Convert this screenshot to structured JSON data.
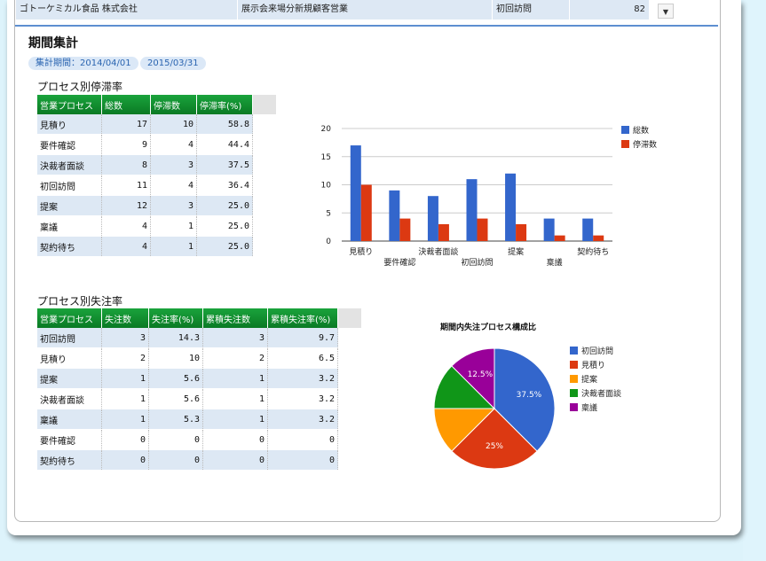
{
  "top_row": {
    "company": "ゴトーケミカル食品 株式会社",
    "department": "展示会来場分新規顧客営業",
    "process": "初回訪問",
    "value": "82"
  },
  "section": {
    "title": "期間集計",
    "period_label": "集計期間：2014/04/01",
    "period_end": "2015/03/31"
  },
  "stagnation": {
    "title": "プロセス別停滞率",
    "headers": [
      "営業プロセス",
      "総数",
      "停滞数",
      "停滞率(%)"
    ],
    "rows": [
      [
        "見積り",
        "17",
        "10",
        "58.8"
      ],
      [
        "要件確認",
        "9",
        "4",
        "44.4"
      ],
      [
        "決裁者面談",
        "8",
        "3",
        "37.5"
      ],
      [
        "初回訪問",
        "11",
        "4",
        "36.4"
      ],
      [
        "提案",
        "12",
        "3",
        "25.0"
      ],
      [
        "稟議",
        "4",
        "1",
        "25.0"
      ],
      [
        "契約待ち",
        "4",
        "1",
        "25.0"
      ]
    ]
  },
  "lost": {
    "title": "プロセス別失注率",
    "headers": [
      "営業プロセス",
      "失注数",
      "失注率(%)",
      "累積失注数",
      "累積失注率(%)"
    ],
    "rows": [
      [
        "初回訪問",
        "3",
        "14.3",
        "3",
        "9.7"
      ],
      [
        "見積り",
        "2",
        "10",
        "2",
        "6.5"
      ],
      [
        "提案",
        "1",
        "5.6",
        "1",
        "3.2"
      ],
      [
        "決裁者面談",
        "1",
        "5.6",
        "1",
        "3.2"
      ],
      [
        "稟議",
        "1",
        "5.3",
        "1",
        "3.2"
      ],
      [
        "要件確認",
        "0",
        "0",
        "0",
        "0"
      ],
      [
        "契約待ち",
        "0",
        "0",
        "0",
        "0"
      ]
    ]
  },
  "chart_data": [
    {
      "type": "bar",
      "categories": [
        "見積り",
        "要件確認",
        "決裁者面談",
        "初回訪問",
        "提案",
        "稟議",
        "契約待ち"
      ],
      "series": [
        {
          "name": "総数",
          "values": [
            17,
            9,
            8,
            11,
            12,
            4,
            4
          ],
          "color": "#3366cc"
        },
        {
          "name": "停滞数",
          "values": [
            10,
            4,
            3,
            4,
            3,
            1,
            1
          ],
          "color": "#dc3912"
        }
      ],
      "yticks": [
        "0",
        "5",
        "10",
        "15",
        "20"
      ],
      "ylim": [
        0,
        20
      ],
      "legend": "right"
    },
    {
      "type": "pie",
      "title": "期間内失注プロセス構成比",
      "labels": [
        "初回訪問",
        "見積り",
        "提案",
        "決裁者面談",
        "稟議"
      ],
      "values": [
        3,
        2,
        1,
        1,
        1
      ],
      "slice_labels": [
        "37.5%",
        "25%",
        "",
        "",
        "12.5%"
      ],
      "colors": [
        "#3366cc",
        "#dc3912",
        "#ff9900",
        "#109618",
        "#990099"
      ],
      "legend": "right"
    }
  ]
}
